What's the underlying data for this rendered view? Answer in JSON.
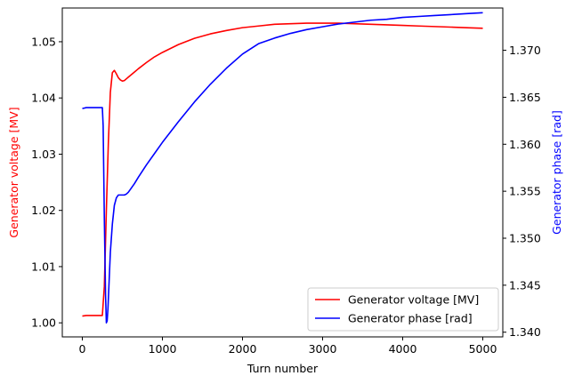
{
  "chart_data": {
    "type": "line",
    "xlabel": "Turn number",
    "ylabel_left": "Generator voltage [MV]",
    "ylabel_right": "Generator phase [rad]",
    "xlim": [
      -250,
      5250
    ],
    "ylim_left": [
      0.9975,
      1.056
    ],
    "ylim_right": [
      1.3395,
      1.3745
    ],
    "x_ticks": [
      0,
      1000,
      2000,
      3000,
      4000,
      5000
    ],
    "y_left_ticks": [
      1.0,
      1.01,
      1.02,
      1.03,
      1.04,
      1.05
    ],
    "y_right_ticks": [
      1.34,
      1.345,
      1.35,
      1.355,
      1.36,
      1.365,
      1.37
    ],
    "x_tick_labels": [
      "0",
      "1000",
      "2000",
      "3000",
      "4000",
      "5000"
    ],
    "y_left_tick_labels": [
      "1.00",
      "1.01",
      "1.02",
      "1.03",
      "1.04",
      "1.05"
    ],
    "y_right_tick_labels": [
      "1.340",
      "1.345",
      "1.350",
      "1.355",
      "1.360",
      "1.365",
      "1.370"
    ],
    "grid": false,
    "legend_position": "bottom-right",
    "series": [
      {
        "name": "Generator voltage [MV]",
        "axis": "left",
        "color": "#ff0000",
        "x": [
          0,
          50,
          100,
          150,
          200,
          250,
          275,
          300,
          325,
          350,
          375,
          400,
          425,
          450,
          475,
          500,
          525,
          550,
          575,
          600,
          650,
          700,
          800,
          900,
          1000,
          1200,
          1400,
          1600,
          1800,
          2000,
          2200,
          2400,
          2600,
          2800,
          3000,
          3200,
          3400,
          3600,
          3800,
          4000,
          4200,
          4400,
          4600,
          4800,
          5000
        ],
        "y": [
          1.0012,
          1.0013,
          1.0013,
          1.0013,
          1.0013,
          1.0013,
          1.0065,
          1.02,
          1.032,
          1.041,
          1.0445,
          1.0449,
          1.0443,
          1.0436,
          1.0432,
          1.043,
          1.0431,
          1.0434,
          1.0437,
          1.044,
          1.0446,
          1.0452,
          1.0463,
          1.0473,
          1.0481,
          1.0495,
          1.0506,
          1.0514,
          1.052,
          1.0525,
          1.0528,
          1.0531,
          1.0532,
          1.0533,
          1.0533,
          1.0533,
          1.0532,
          1.0531,
          1.053,
          1.0529,
          1.0528,
          1.0527,
          1.0526,
          1.0525,
          1.0524
        ]
      },
      {
        "name": "Generator phase [rad]",
        "axis": "right",
        "color": "#0000ff",
        "x": [
          0,
          50,
          100,
          150,
          200,
          250,
          260,
          275,
          290,
          300,
          310,
          320,
          330,
          340,
          350,
          375,
          400,
          425,
          450,
          475,
          500,
          525,
          550,
          575,
          600,
          650,
          700,
          800,
          900,
          1000,
          1200,
          1400,
          1600,
          1800,
          2000,
          2200,
          2400,
          2600,
          2800,
          3000,
          3200,
          3400,
          3600,
          3800,
          4000,
          4200,
          4400,
          4600,
          4800,
          5000
        ],
        "y": [
          1.3638,
          1.3639,
          1.3639,
          1.3639,
          1.3639,
          1.3639,
          1.362,
          1.352,
          1.344,
          1.341,
          1.3412,
          1.3425,
          1.3445,
          1.3465,
          1.3485,
          1.3515,
          1.3535,
          1.3543,
          1.3546,
          1.3546,
          1.3546,
          1.3546,
          1.3547,
          1.3549,
          1.3552,
          1.3558,
          1.3565,
          1.3578,
          1.359,
          1.3602,
          1.3624,
          1.3645,
          1.3664,
          1.3681,
          1.3696,
          1.3707,
          1.3713,
          1.3718,
          1.3722,
          1.3725,
          1.3728,
          1.373,
          1.3732,
          1.3733,
          1.3735,
          1.3736,
          1.3737,
          1.3738,
          1.3739,
          1.374
        ]
      }
    ]
  }
}
